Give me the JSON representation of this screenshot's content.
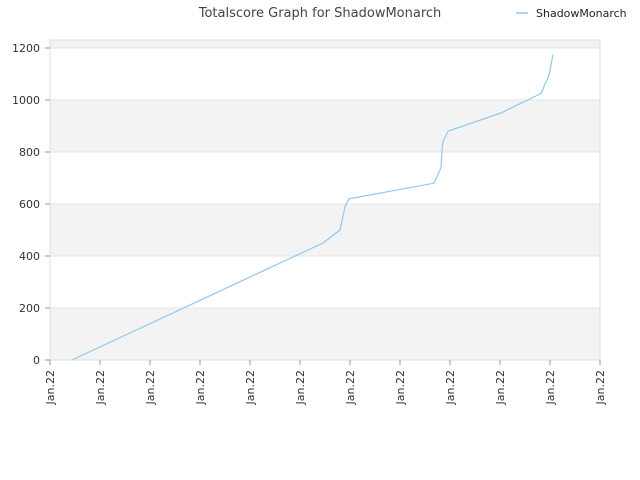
{
  "chart_data": {
    "type": "line",
    "title": "Totalscore Graph for ShadowMonarch",
    "xlabel": "",
    "ylabel": "",
    "ylim": [
      0,
      1200
    ],
    "yticks": [
      0,
      200,
      400,
      600,
      800,
      1000,
      1200
    ],
    "xticks": [
      "Jan.22",
      "Jan.22",
      "Jan.22",
      "Jan.22",
      "Jan.22",
      "Jan.22",
      "Jan.22",
      "Jan.22",
      "Jan.22",
      "Jan.22",
      "Jan.22",
      "Jan.22"
    ],
    "xlim": [
      0,
      11
    ],
    "grid": true,
    "band_fill": "#f3f3f3",
    "legend_position": "top-right",
    "series": [
      {
        "name": "ShadowMonarch",
        "color": "#90c8f0",
        "x": [
          0.44,
          5.46,
          5.8,
          5.9,
          5.98,
          7.68,
          7.82,
          7.84,
          7.86,
          7.96,
          9.02,
          9.82,
          9.98,
          10.06
        ],
        "y": [
          0,
          450,
          500,
          590,
          620,
          680,
          740,
          810,
          840,
          880,
          950,
          1025,
          1095,
          1175
        ]
      }
    ]
  }
}
